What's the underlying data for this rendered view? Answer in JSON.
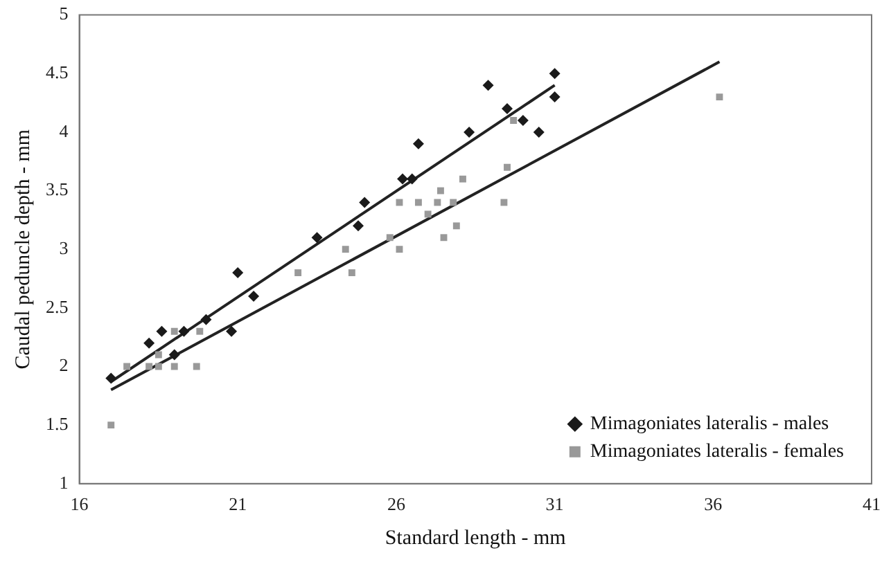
{
  "chart_data": {
    "type": "scatter",
    "xlabel": "Standard length - mm",
    "ylabel": "Caudal peduncle depth - mm",
    "xlim": [
      16,
      41
    ],
    "xticks": [
      16,
      21,
      26,
      31,
      36,
      41
    ],
    "ylim": [
      1,
      5
    ],
    "yticks": [
      1,
      1.5,
      2,
      2.5,
      3,
      3.5,
      4,
      4.5,
      5
    ],
    "grid": false,
    "legend": "bottom right",
    "series": [
      {
        "name": "Mimagoniates lateralis - males",
        "color": "#1a1a1a",
        "marker": "diamond",
        "x": [
          17,
          18.2,
          18.6,
          19,
          19.3,
          20,
          20.8,
          21,
          21.5,
          23.5,
          24.8,
          25,
          26.2,
          26.5,
          26.7,
          28.3,
          28.9,
          29.5,
          30,
          30.5,
          31,
          31
        ],
        "values": [
          1.9,
          2.2,
          2.3,
          2.1,
          2.3,
          2.4,
          2.3,
          2.8,
          2.6,
          3.1,
          3.2,
          3.4,
          3.6,
          3.6,
          3.9,
          4.0,
          4.4,
          4.2,
          4.1,
          4.0,
          4.5,
          4.3
        ]
      },
      {
        "name": "Mimagoniates lateralis - females",
        "color": "#999999",
        "marker": "square",
        "x": [
          17,
          17.5,
          18.2,
          18.5,
          18.5,
          19,
          19,
          19.7,
          19.8,
          22.9,
          24.4,
          24.6,
          25.8,
          26.1,
          26.1,
          26.7,
          27,
          27.3,
          27.4,
          27.5,
          27.8,
          27.9,
          28.1,
          29.4,
          29.5,
          29.7,
          36.2
        ],
        "values": [
          1.5,
          2.0,
          2.0,
          2.0,
          2.1,
          2.0,
          2.3,
          2.0,
          2.3,
          2.8,
          3.0,
          2.8,
          3.1,
          3.0,
          3.4,
          3.4,
          3.3,
          3.4,
          3.5,
          3.1,
          3.4,
          3.2,
          3.6,
          3.4,
          3.7,
          4.1,
          4.3
        ]
      },
      {
        "type": "line",
        "color": "#222222",
        "marker": "none",
        "x": [
          17,
          31
        ],
        "values": [
          1.87,
          4.4
        ]
      },
      {
        "type": "line",
        "color": "#222222",
        "marker": "none",
        "x": [
          17,
          36.2
        ],
        "values": [
          1.8,
          4.6
        ]
      }
    ]
  }
}
